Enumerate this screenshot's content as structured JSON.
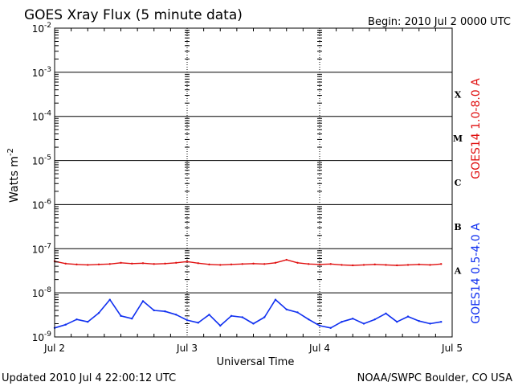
{
  "title": "GOES Xray Flux (5 minute data)",
  "begin_label": "Begin:  2010 Jul 2 0000 UTC",
  "updated_label": "Updated 2010 Jul  4 22:00:12 UTC",
  "credit_label": "NOAA/SWPC Boulder, CO USA",
  "colors": {
    "long_channel": "#e01010",
    "short_channel": "#1030f0",
    "axes": "#000000"
  },
  "chart_data": {
    "type": "line",
    "title": "GOES Xray Flux (5 minute data)",
    "xlabel": "Universal Time",
    "ylabel": "Watts m",
    "ylabel_superscript": "-2",
    "y_scale": "log",
    "ylim": [
      1e-09,
      0.01
    ],
    "xlim": [
      "2010-07-02 00:00",
      "2010-07-05 00:00"
    ],
    "x_ticks": [
      "Jul 2",
      "Jul 3",
      "Jul 4",
      "Jul 5"
    ],
    "y_ticks": [
      {
        "base": "10",
        "exp": "-9",
        "value": 1e-09
      },
      {
        "base": "10",
        "exp": "-8",
        "value": 1e-08
      },
      {
        "base": "10",
        "exp": "-7",
        "value": 1e-07
      },
      {
        "base": "10",
        "exp": "-6",
        "value": 1e-06
      },
      {
        "base": "10",
        "exp": "-5",
        "value": 1e-05
      },
      {
        "base": "10",
        "exp": "-4",
        "value": 0.0001
      },
      {
        "base": "10",
        "exp": "-3",
        "value": 0.001
      },
      {
        "base": "10",
        "exp": "-2",
        "value": 0.01
      }
    ],
    "flare_classes": [
      {
        "label": "A",
        "value": 3.16e-08
      },
      {
        "label": "B",
        "value": 3.16e-07
      },
      {
        "label": "C",
        "value": 3.16e-06
      },
      {
        "label": "M",
        "value": 3.16e-05
      },
      {
        "label": "X",
        "value": 0.000316
      }
    ],
    "grid": "horizontal lines at each decade",
    "series": [
      {
        "name": "GOES14 1.0-8.0 A",
        "color": "#e01010",
        "x": [
          "2010-07-02 00:00",
          "2010-07-02 02:00",
          "2010-07-02 04:00",
          "2010-07-02 06:00",
          "2010-07-02 08:00",
          "2010-07-02 10:00",
          "2010-07-02 12:00",
          "2010-07-02 14:00",
          "2010-07-02 16:00",
          "2010-07-02 18:00",
          "2010-07-02 20:00",
          "2010-07-02 22:00",
          "2010-07-03 00:00",
          "2010-07-03 02:00",
          "2010-07-03 04:00",
          "2010-07-03 06:00",
          "2010-07-03 08:00",
          "2010-07-03 10:00",
          "2010-07-03 12:00",
          "2010-07-03 14:00",
          "2010-07-03 16:00",
          "2010-07-03 18:00",
          "2010-07-03 20:00",
          "2010-07-03 22:00",
          "2010-07-04 00:00",
          "2010-07-04 02:00",
          "2010-07-04 04:00",
          "2010-07-04 06:00",
          "2010-07-04 08:00",
          "2010-07-04 10:00",
          "2010-07-04 12:00",
          "2010-07-04 14:00",
          "2010-07-04 16:00",
          "2010-07-04 18:00",
          "2010-07-04 20:00",
          "2010-07-04 22:00"
        ],
        "values": [
          5.2e-08,
          4.6e-08,
          4.4e-08,
          4.3e-08,
          4.4e-08,
          4.5e-08,
          4.8e-08,
          4.6e-08,
          4.7e-08,
          4.5e-08,
          4.6e-08,
          4.8e-08,
          5.1e-08,
          4.7e-08,
          4.4e-08,
          4.3e-08,
          4.4e-08,
          4.5e-08,
          4.6e-08,
          4.5e-08,
          4.8e-08,
          5.6e-08,
          4.8e-08,
          4.5e-08,
          4.4e-08,
          4.5e-08,
          4.3e-08,
          4.2e-08,
          4.3e-08,
          4.4e-08,
          4.3e-08,
          4.2e-08,
          4.3e-08,
          4.4e-08,
          4.3e-08,
          4.5e-08
        ]
      },
      {
        "name": "GOES14 0.5-4.0 A",
        "color": "#1030f0",
        "x": [
          "2010-07-02 00:00",
          "2010-07-02 02:00",
          "2010-07-02 04:00",
          "2010-07-02 06:00",
          "2010-07-02 08:00",
          "2010-07-02 10:00",
          "2010-07-02 12:00",
          "2010-07-02 14:00",
          "2010-07-02 16:00",
          "2010-07-02 18:00",
          "2010-07-02 20:00",
          "2010-07-02 22:00",
          "2010-07-03 00:00",
          "2010-07-03 02:00",
          "2010-07-03 04:00",
          "2010-07-03 06:00",
          "2010-07-03 08:00",
          "2010-07-03 10:00",
          "2010-07-03 12:00",
          "2010-07-03 14:00",
          "2010-07-03 16:00",
          "2010-07-03 18:00",
          "2010-07-03 20:00",
          "2010-07-03 22:00",
          "2010-07-04 00:00",
          "2010-07-04 02:00",
          "2010-07-04 04:00",
          "2010-07-04 06:00",
          "2010-07-04 08:00",
          "2010-07-04 10:00",
          "2010-07-04 12:00",
          "2010-07-04 14:00",
          "2010-07-04 16:00",
          "2010-07-04 18:00",
          "2010-07-04 20:00",
          "2010-07-04 22:00"
        ],
        "values": [
          1.6e-09,
          1.9e-09,
          2.5e-09,
          2.2e-09,
          3.5e-09,
          7e-09,
          3e-09,
          2.6e-09,
          6.5e-09,
          4e-09,
          3.8e-09,
          3.2e-09,
          2.4e-09,
          2.1e-09,
          3.2e-09,
          1.8e-09,
          3e-09,
          2.8e-09,
          2e-09,
          2.8e-09,
          7e-09,
          4.2e-09,
          3.6e-09,
          2.5e-09,
          1.8e-09,
          1.6e-09,
          2.2e-09,
          2.6e-09,
          2e-09,
          2.5e-09,
          3.4e-09,
          2.2e-09,
          2.9e-09,
          2.3e-09,
          2e-09,
          2.2e-09
        ]
      }
    ]
  }
}
